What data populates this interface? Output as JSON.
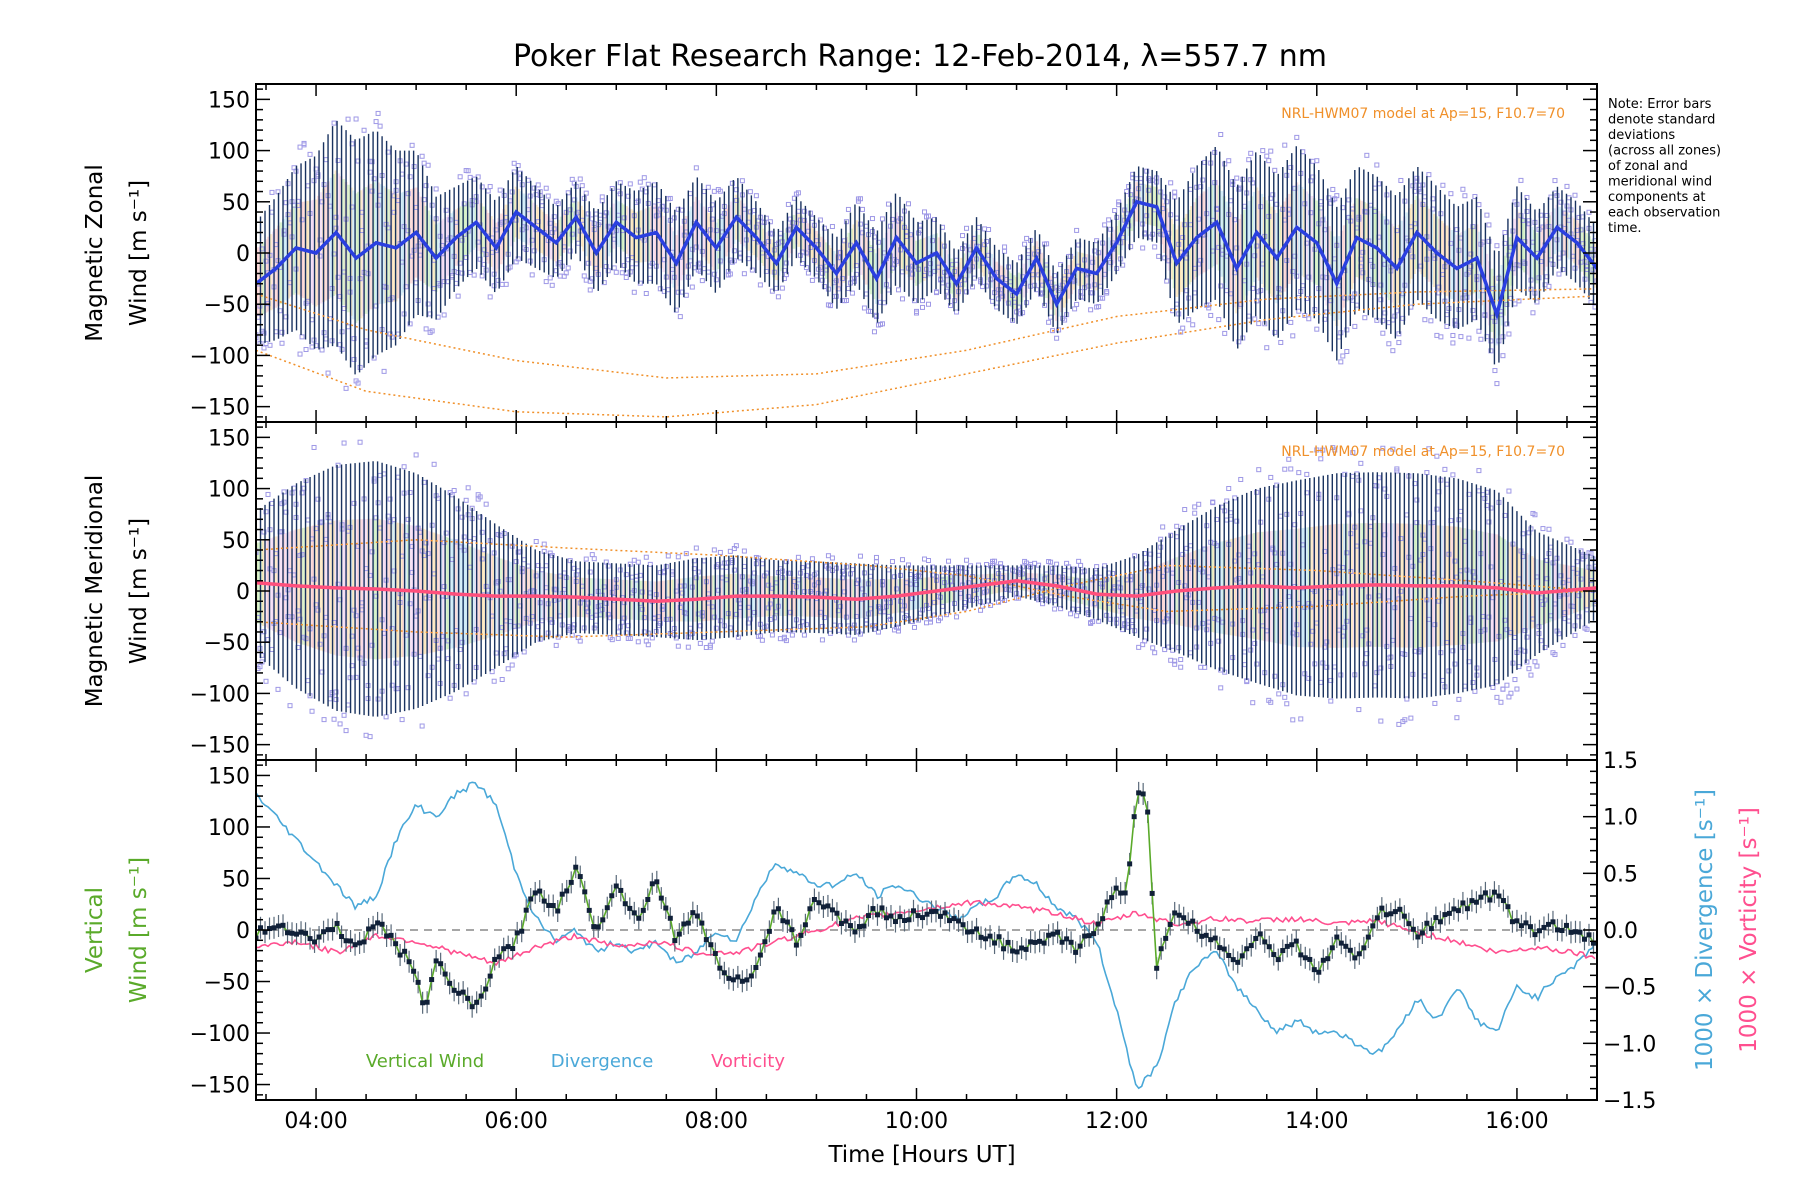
{
  "chart_data": {
    "title": "Poker Flat Research Range: 12-Feb-2014, λ=557.7 nm",
    "xlabel": "Time [Hours UT]",
    "xlim_hours": [
      3.4,
      16.8
    ],
    "xticks_hours": [
      4,
      6,
      8,
      10,
      12,
      14,
      16
    ],
    "xtick_labels": [
      "04:00",
      "06:00",
      "08:00",
      "10:00",
      "12:00",
      "14:00",
      "16:00"
    ],
    "note": [
      "Note: Error bars",
      "denote standard",
      "deviations",
      "(across all zones)",
      "of zonal and",
      "meridional wind",
      "components at",
      "each observation",
      "time."
    ],
    "colors": {
      "zonal_mean": "#2a3fe0",
      "zonal_fill": "#52b6e0",
      "meridional_mean": "#ff4f7c",
      "errorbar": "#1a3360",
      "scatter": "#9e98e6",
      "model": "#f0902a",
      "vertical": "#5aaa2a",
      "divergence": "#4aa8d8",
      "vorticity": "#ff4f8f",
      "zero_line": "#888888"
    },
    "panels": [
      {
        "id": "zonal",
        "type": "line",
        "ylabel_lines": [
          "Magnetic Zonal",
          "Wind [m s⁻¹]"
        ],
        "ylim": [
          -165,
          165
        ],
        "yticks": [
          -150,
          -100,
          -50,
          0,
          50,
          100,
          150
        ],
        "ytick_labels": [
          "−150",
          "−100",
          "−50",
          "0",
          "50",
          "100",
          "150"
        ],
        "model_label": "NRL-HWM07 model at Ap=15, F10.7=70",
        "series": [
          {
            "name": "",
            "x": [
              3.4,
              3.6,
              3.8,
              4.0,
              4.2,
              4.4,
              4.6,
              4.8,
              5.0,
              5.2,
              5.4,
              5.6,
              5.8,
              6.0,
              6.2,
              6.4,
              6.6,
              6.8,
              7.0,
              7.2,
              7.4,
              7.6,
              7.8,
              8.0,
              8.2,
              8.4,
              8.6,
              8.8,
              9.0,
              9.2,
              9.4,
              9.6,
              9.8,
              10.0,
              10.2,
              10.4,
              10.6,
              10.8,
              11.0,
              11.2,
              11.4,
              11.6,
              11.8,
              12.0,
              12.2,
              12.4,
              12.6,
              12.8,
              13.0,
              13.2,
              13.4,
              13.6,
              13.8,
              14.0,
              14.2,
              14.4,
              14.6,
              14.8,
              15.0,
              15.2,
              15.4,
              15.6,
              15.8,
              16.0,
              16.2,
              16.4,
              16.6,
              16.8
            ],
            "values": [
              -30,
              -15,
              5,
              0,
              20,
              -5,
              10,
              5,
              20,
              -5,
              15,
              30,
              5,
              40,
              25,
              10,
              35,
              0,
              30,
              15,
              20,
              -10,
              30,
              5,
              35,
              15,
              -10,
              25,
              5,
              -20,
              10,
              -25,
              15,
              -10,
              0,
              -30,
              5,
              -25,
              -40,
              -5,
              -50,
              -15,
              -20,
              10,
              50,
              45,
              -10,
              15,
              30,
              -15,
              20,
              -5,
              25,
              10,
              -30,
              15,
              5,
              -15,
              20,
              0,
              -15,
              -5,
              -60,
              15,
              -5,
              25,
              10,
              -15
            ],
            "spread": [
              60,
              70,
              80,
              95,
              110,
              115,
              110,
              95,
              80,
              60,
              50,
              45,
              45,
              45,
              40,
              35,
              35,
              40,
              40,
              45,
              50,
              50,
              45,
              45,
              40,
              35,
              30,
              30,
              30,
              35,
              40,
              45,
              45,
              40,
              35,
              30,
              30,
              30,
              30,
              30,
              30,
              30,
              30,
              30,
              35,
              35,
              60,
              70,
              75,
              80,
              80,
              80,
              80,
              75,
              75,
              70,
              70,
              70,
              65,
              65,
              60,
              60,
              55,
              50,
              45,
              40,
              40,
              40
            ]
          }
        ],
        "model_curves": [
          {
            "x": [
              3.4,
              4.5,
              6.0,
              7.5,
              9.0,
              10.5,
              12.0,
              13.5,
              15.0,
              16.8
            ],
            "values": [
              -40,
              -75,
              -105,
              -122,
              -118,
              -95,
              -62,
              -45,
              -38,
              -35
            ]
          },
          {
            "x": [
              3.4,
              4.5,
              6.0,
              7.5,
              9.0,
              10.5,
              12.0,
              13.5,
              15.0,
              16.8
            ],
            "values": [
              -95,
              -135,
              -155,
              -160,
              -148,
              -118,
              -88,
              -65,
              -50,
              -42
            ]
          }
        ]
      },
      {
        "id": "meridional",
        "type": "line",
        "ylabel_lines": [
          "Magnetic Meridional",
          "Wind [m s⁻¹]"
        ],
        "ylim": [
          -165,
          165
        ],
        "yticks": [
          -150,
          -100,
          -50,
          0,
          50,
          100,
          150
        ],
        "ytick_labels": [
          "−150",
          "−100",
          "−50",
          "0",
          "50",
          "100",
          "150"
        ],
        "model_label": "NRL-HWM07 model at Ap=15, F10.7=70",
        "series": [
          {
            "name": "",
            "x": [
              3.4,
              3.8,
              4.2,
              4.6,
              5.0,
              5.4,
              5.8,
              6.2,
              6.6,
              7.0,
              7.4,
              7.8,
              8.2,
              8.6,
              9.0,
              9.4,
              9.8,
              10.2,
              10.6,
              11.0,
              11.4,
              11.8,
              12.2,
              12.6,
              13.0,
              13.4,
              13.8,
              14.2,
              14.6,
              15.0,
              15.4,
              15.8,
              16.2,
              16.8
            ],
            "values": [
              8,
              5,
              3,
              2,
              0,
              -3,
              -5,
              -5,
              -6,
              -8,
              -10,
              -8,
              -5,
              -5,
              -6,
              -8,
              -5,
              0,
              5,
              10,
              5,
              -3,
              -5,
              0,
              3,
              5,
              3,
              5,
              6,
              5,
              5,
              3,
              -2,
              3
            ],
            "spread": [
              70,
              100,
              120,
              125,
              115,
              95,
              70,
              45,
              35,
              35,
              35,
              40,
              40,
              35,
              35,
              35,
              30,
              25,
              20,
              15,
              20,
              25,
              40,
              60,
              80,
              95,
              105,
              110,
              110,
              110,
              105,
              95,
              60,
              30
            ]
          }
        ],
        "model_curves": [
          {
            "x": [
              3.4,
              5.0,
              6.5,
              8.0,
              9.5,
              10.5,
              11.5,
              12.5,
              14.0,
              15.5,
              16.8
            ],
            "values": [
              -30,
              -40,
              -45,
              -40,
              -35,
              -20,
              5,
              25,
              20,
              10,
              0
            ]
          },
          {
            "x": [
              3.4,
              5.0,
              6.5,
              8.0,
              9.5,
              10.5,
              11.5,
              12.5,
              14.0,
              15.5,
              16.8
            ],
            "values": [
              40,
              50,
              42,
              35,
              25,
              15,
              -5,
              -20,
              -15,
              -5,
              0
            ]
          }
        ]
      },
      {
        "id": "vertical",
        "type": "line",
        "ylabel_lines": [
          "Vertical",
          "Wind [m s⁻¹]"
        ],
        "ylim": [
          -165,
          165
        ],
        "yticks": [
          -150,
          -100,
          -50,
          0,
          50,
          100,
          150
        ],
        "ytick_labels": [
          "−150",
          "−100",
          "−50",
          "0",
          "50",
          "100",
          "150"
        ],
        "y2label_outer": "1000 × Vorticity [s⁻¹]",
        "y2label_inner": "1000 × Divergence [s⁻¹]",
        "y2lim": [
          -1.5,
          1.5
        ],
        "y2ticks": [
          -1.5,
          -1.0,
          -0.5,
          0.0,
          0.5,
          1.0,
          1.5
        ],
        "y2tick_labels": [
          "−1.5",
          "−1.0",
          "−0.5",
          "0.0",
          "0.5",
          "1.0",
          "1.5"
        ],
        "legend": [
          "Vertical Wind",
          "Divergence",
          "Vorticity"
        ],
        "series": [
          {
            "name": "Vertical Wind",
            "axis": "left",
            "x": [
              3.4,
              3.6,
              3.8,
              4.0,
              4.2,
              4.4,
              4.6,
              4.8,
              5.0,
              5.1,
              5.2,
              5.4,
              5.6,
              5.8,
              6.0,
              6.2,
              6.4,
              6.6,
              6.8,
              7.0,
              7.2,
              7.4,
              7.6,
              7.8,
              8.0,
              8.2,
              8.4,
              8.6,
              8.8,
              9.0,
              9.2,
              9.4,
              9.6,
              9.8,
              10.0,
              10.2,
              10.4,
              10.6,
              10.8,
              11.0,
              11.2,
              11.4,
              11.6,
              11.8,
              12.0,
              12.1,
              12.2,
              12.3,
              12.4,
              12.6,
              12.8,
              13.0,
              13.2,
              13.4,
              13.6,
              13.8,
              14.0,
              14.2,
              14.4,
              14.6,
              14.8,
              15.0,
              15.2,
              15.4,
              15.6,
              15.8,
              16.0,
              16.2,
              16.4,
              16.6,
              16.8
            ],
            "values": [
              -5,
              5,
              0,
              -10,
              5,
              -20,
              10,
              -15,
              -40,
              -80,
              -30,
              -60,
              -75,
              -30,
              -10,
              40,
              20,
              60,
              0,
              45,
              10,
              50,
              -10,
              20,
              -30,
              -50,
              -40,
              20,
              -10,
              30,
              15,
              0,
              20,
              10,
              15,
              20,
              5,
              0,
              -10,
              -20,
              -15,
              -5,
              -20,
              5,
              40,
              30,
              140,
              130,
              -35,
              20,
              0,
              -10,
              -30,
              -5,
              -25,
              -15,
              -40,
              -10,
              -30,
              15,
              20,
              -5,
              10,
              20,
              30,
              35,
              5,
              0,
              5,
              -5,
              -10
            ]
          },
          {
            "name": "Divergence",
            "axis": "right",
            "x": [
              3.4,
              3.6,
              3.8,
              4.0,
              4.2,
              4.4,
              4.6,
              4.8,
              5.0,
              5.2,
              5.4,
              5.6,
              5.8,
              6.0,
              6.2,
              6.4,
              6.6,
              6.8,
              7.0,
              7.2,
              7.4,
              7.6,
              7.8,
              8.0,
              8.2,
              8.4,
              8.6,
              8.8,
              9.0,
              9.2,
              9.4,
              9.6,
              9.8,
              10.0,
              10.2,
              10.4,
              10.6,
              10.8,
              11.0,
              11.2,
              11.4,
              11.6,
              11.8,
              12.0,
              12.2,
              12.4,
              12.6,
              12.8,
              13.0,
              13.2,
              13.4,
              13.6,
              13.8,
              14.0,
              14.2,
              14.4,
              14.6,
              14.8,
              15.0,
              15.2,
              15.4,
              15.6,
              15.8,
              16.0,
              16.2,
              16.4,
              16.6,
              16.8
            ],
            "values": [
              1.2,
              1.0,
              0.8,
              0.6,
              0.4,
              0.2,
              0.3,
              0.8,
              1.1,
              1.0,
              1.2,
              1.3,
              1.1,
              0.5,
              0.1,
              -0.1,
              0.0,
              -0.2,
              -0.1,
              -0.2,
              -0.1,
              -0.3,
              -0.2,
              0.0,
              -0.1,
              0.3,
              0.6,
              0.5,
              0.4,
              0.4,
              0.5,
              0.3,
              0.4,
              0.3,
              0.2,
              0.1,
              0.2,
              0.3,
              0.5,
              0.4,
              0.2,
              0.1,
              -0.1,
              -0.7,
              -1.4,
              -1.2,
              -0.6,
              -0.3,
              -0.2,
              -0.5,
              -0.7,
              -0.9,
              -0.8,
              -0.9,
              -0.9,
              -1.0,
              -1.1,
              -0.9,
              -0.6,
              -0.8,
              -0.5,
              -0.8,
              -0.9,
              -0.5,
              -0.6,
              -0.4,
              -0.3,
              -0.1
            ]
          },
          {
            "name": "Vorticity",
            "axis": "right",
            "x": [
              3.4,
              3.8,
              4.2,
              4.6,
              5.0,
              5.4,
              5.8,
              6.2,
              6.6,
              7.0,
              7.4,
              7.8,
              8.2,
              8.6,
              9.0,
              9.4,
              9.8,
              10.2,
              10.6,
              11.0,
              11.4,
              11.8,
              12.2,
              12.6,
              13.0,
              13.4,
              13.8,
              14.2,
              14.6,
              15.0,
              15.4,
              15.8,
              16.2,
              16.6,
              16.8
            ],
            "values": [
              -0.15,
              -0.1,
              -0.2,
              -0.05,
              -0.1,
              -0.2,
              -0.3,
              -0.15,
              -0.05,
              -0.15,
              -0.1,
              -0.2,
              -0.2,
              -0.1,
              0.0,
              0.1,
              0.15,
              0.2,
              0.25,
              0.2,
              0.15,
              0.05,
              0.15,
              0.05,
              0.1,
              0.08,
              0.1,
              0.05,
              0.08,
              -0.02,
              -0.1,
              -0.2,
              -0.15,
              -0.2,
              -0.25
            ]
          }
        ]
      }
    ]
  }
}
